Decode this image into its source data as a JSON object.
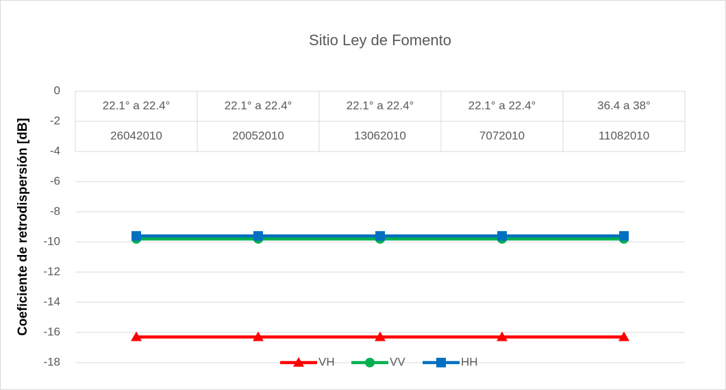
{
  "chart_data": {
    "type": "line",
    "title": "Sitio Ley de Fomento",
    "y_label": "Coeficiente de retrodispersión [dB]",
    "categories": [
      "26042010",
      "20052010",
      "13062010",
      "7072010",
      "11082010"
    ],
    "category_groups": [
      "22.1° a 22.4°",
      "22.1° a 22.4°",
      "22.1° a 22.4°",
      "22.1° a 22.4°",
      "36.4 a 38°"
    ],
    "series": [
      {
        "name": "VH",
        "color": "#ff0000",
        "marker": "triangle",
        "values": [
          -16.3,
          -16.3,
          -16.3,
          -16.3,
          -16.3
        ]
      },
      {
        "name": "VV",
        "color": "#00b050",
        "marker": "circle",
        "values": [
          -9.8,
          -9.8,
          -9.8,
          -9.8,
          -9.8
        ]
      },
      {
        "name": "HH",
        "color": "#0070c0",
        "marker": "square",
        "values": [
          -9.6,
          -9.6,
          -9.6,
          -9.6,
          -9.6
        ]
      }
    ],
    "ylim": [
      -18,
      0
    ],
    "yticks": [
      0,
      -2,
      -4,
      -6,
      -8,
      -10,
      -12,
      -14,
      -16,
      -18
    ],
    "grid": true,
    "legend": "bottom"
  }
}
